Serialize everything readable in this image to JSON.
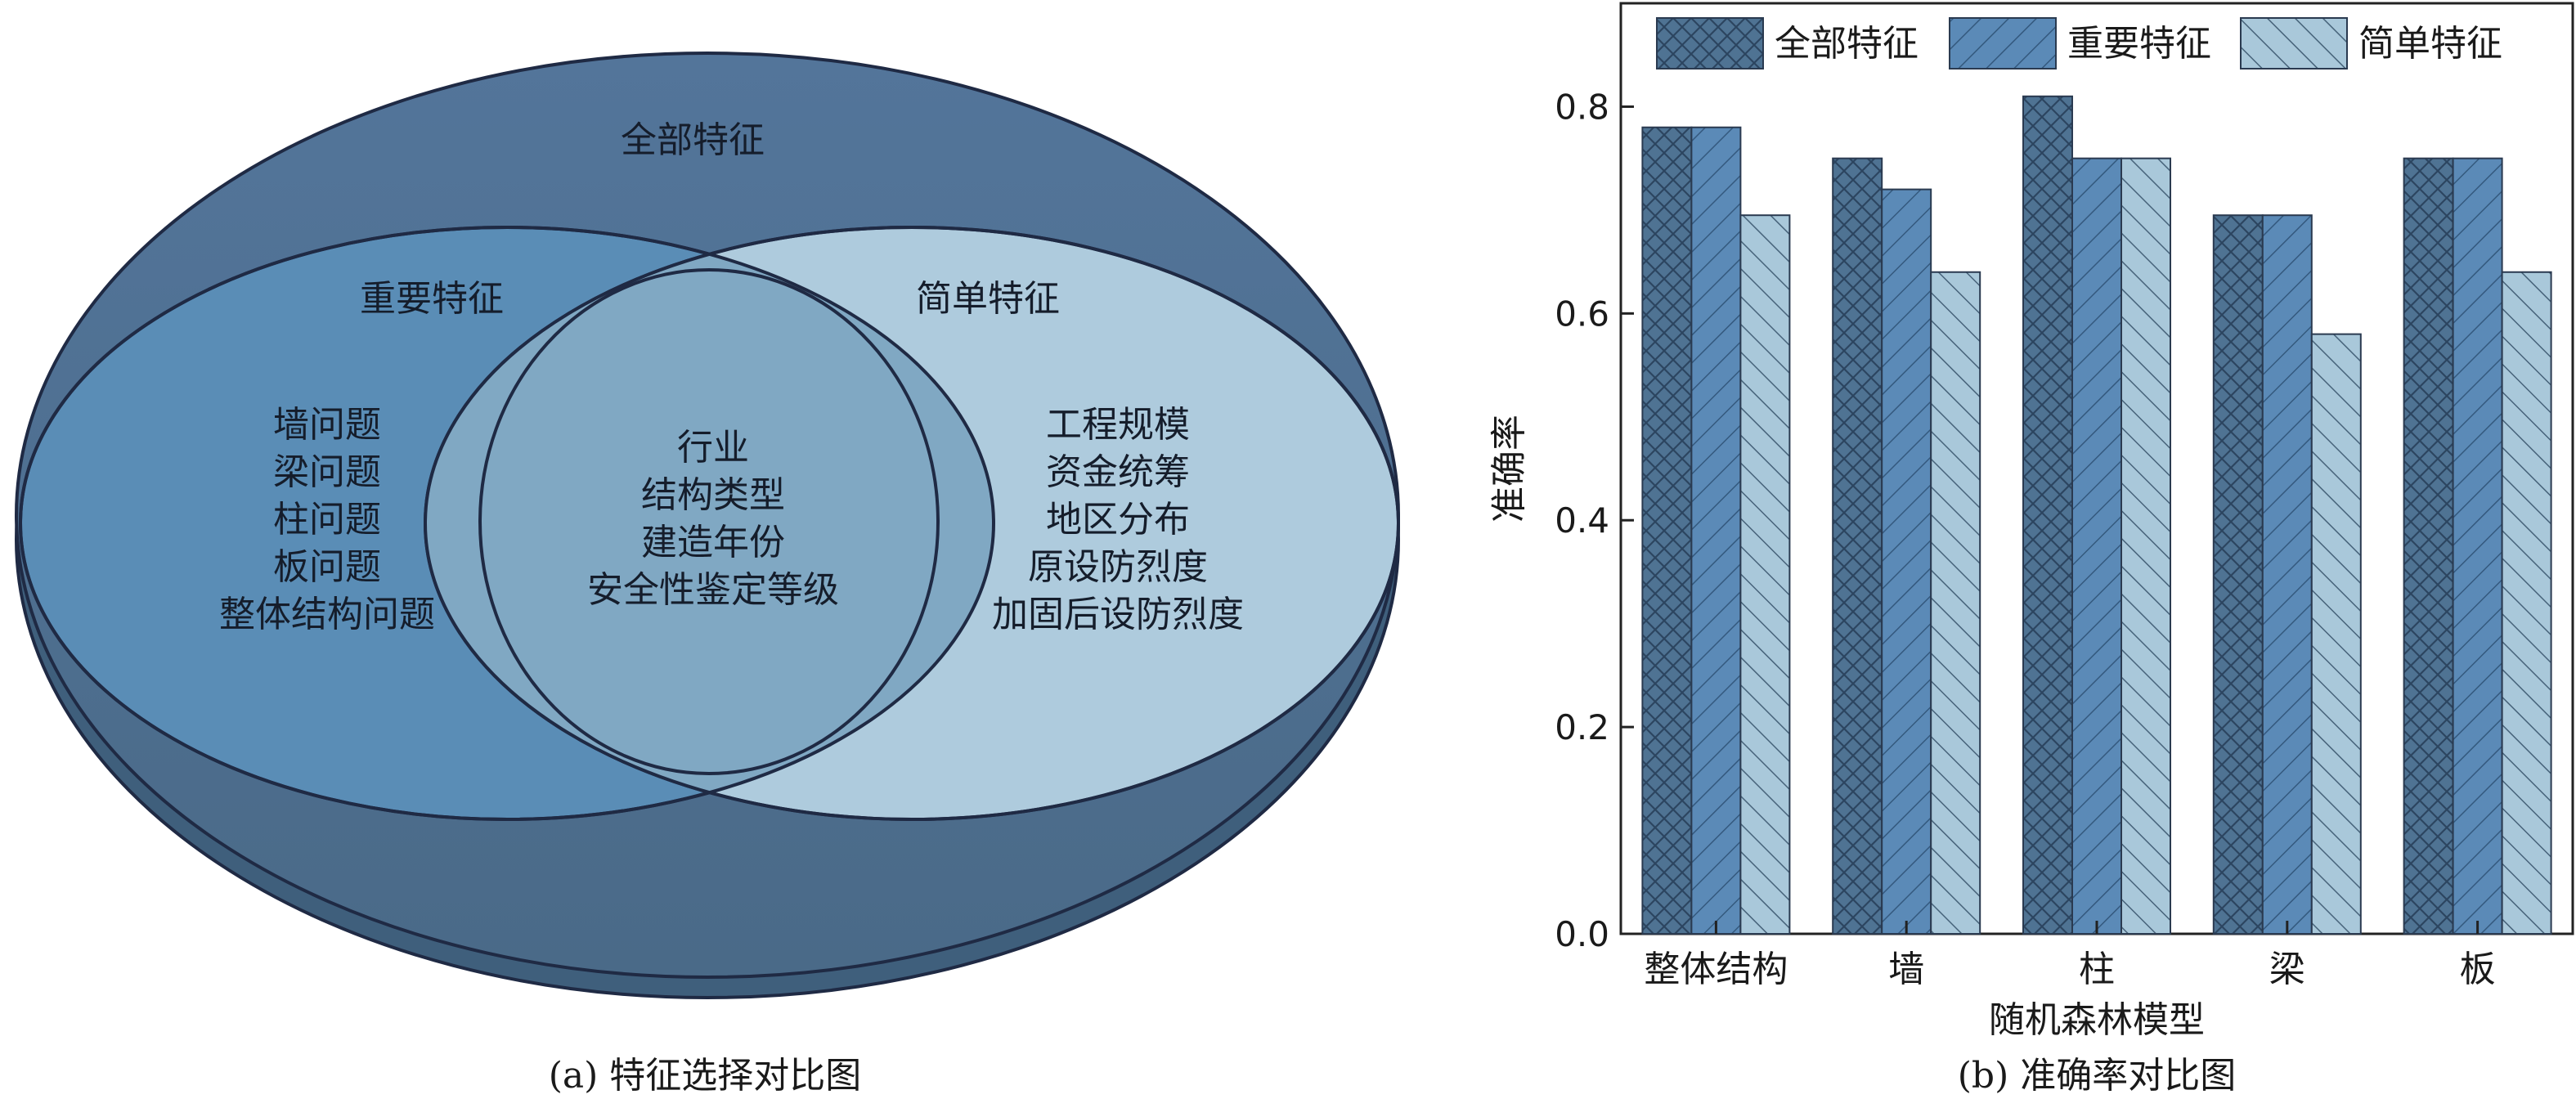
{
  "venn": {
    "outer_label": "全部特征",
    "left_label": "重要特征",
    "right_label": "简单特征",
    "left_only_items": [
      "墙问题",
      "梁问题",
      "柱问题",
      "板问题",
      "整体结构问题"
    ],
    "intersection_items": [
      "行业",
      "结构类型",
      "建造年份",
      "安全性鉴定等级"
    ],
    "right_only_items": [
      "工程规模",
      "资金统筹",
      "地区分布",
      "原设防烈度",
      "加固后设防烈度"
    ],
    "colors": {
      "outer_fill": "#4e6e8c",
      "outer_edge": "#3f5c77",
      "left_fill": "#5a8db6",
      "intersection_fill": "#80a8c3",
      "right_fill": "#aecbdd",
      "stroke": "#1f2a44"
    },
    "caption": "(a) 特征选择对比图"
  },
  "chart_data": {
    "type": "bar",
    "categories": [
      "整体结构",
      "墙",
      "柱",
      "梁",
      "板"
    ],
    "series": [
      {
        "name": "全部特征",
        "values": [
          0.78,
          0.75,
          0.81,
          0.695,
          0.75
        ],
        "color": "#4f7393",
        "pattern": "cross-hatch"
      },
      {
        "name": "重要特征",
        "values": [
          0.78,
          0.72,
          0.75,
          0.695,
          0.75
        ],
        "color": "#5b8ab7",
        "pattern": "forward-diagonal"
      },
      {
        "name": "简单特征",
        "values": [
          0.695,
          0.64,
          0.75,
          0.58,
          0.64
        ],
        "color": "#a9c8da",
        "pattern": "back-diagonal"
      }
    ],
    "xlabel": "随机森林模型",
    "ylabel": "准确率",
    "ylim": [
      0,
      0.9
    ],
    "yticks": [
      0.0,
      0.2,
      0.4,
      0.6,
      0.8
    ],
    "ytick_labels": [
      "0.0",
      "0.2",
      "0.4",
      "0.6",
      "0.8"
    ],
    "legend_position": "top",
    "grid": false,
    "caption": "(b) 准确率对比图"
  }
}
